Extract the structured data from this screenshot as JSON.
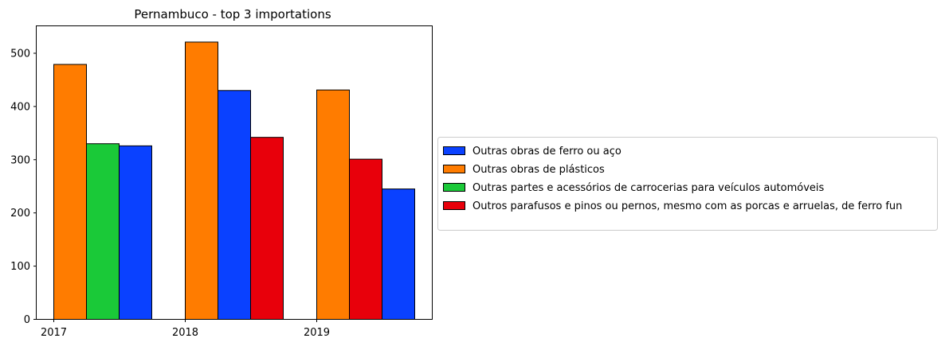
{
  "chart_data": {
    "type": "bar",
    "title": "Pernambuco - top 3 importations",
    "xlabel": "",
    "ylabel": "",
    "ylim": [
      0,
      550
    ],
    "yticks": [
      0,
      100,
      200,
      300,
      400,
      500
    ],
    "xticks": [
      "2017",
      "2018",
      "2019"
    ],
    "legend_position": "center-left, outside right of plot",
    "series": [
      {
        "name": "Outras obras de ferro ou aço",
        "color": "#0a41ff"
      },
      {
        "name": "Outras obras de plásticos",
        "color": "#ff7c00"
      },
      {
        "name": "Outras partes e acessórios de carrocerias para veículos automóveis",
        "color": "#1ac938"
      },
      {
        "name": "Outros parafusos e pinos ou pernos, mesmo com as porcas e arruelas, de ferro fun",
        "color": "#e8000b"
      }
    ],
    "groups": [
      {
        "year": "2017",
        "bars": [
          {
            "series": "Outras obras de plásticos",
            "value": 479
          },
          {
            "series": "Outras partes e acessórios de carrocerias para veículos automóveis",
            "value": 330
          },
          {
            "series": "Outras obras de ferro ou aço",
            "value": 326
          }
        ]
      },
      {
        "year": "2018",
        "bars": [
          {
            "series": "Outras obras de plásticos",
            "value": 521
          },
          {
            "series": "Outras obras de ferro ou aço",
            "value": 430
          },
          {
            "series": "Outros parafusos e pinos ou pernos, mesmo com as porcas e arruelas, de ferro fun",
            "value": 342
          }
        ]
      },
      {
        "year": "2019",
        "bars": [
          {
            "series": "Outras obras de plásticos",
            "value": 431
          },
          {
            "series": "Outros parafusos e pinos ou pernos, mesmo com as porcas e arruelas, de ferro fun",
            "value": 301
          },
          {
            "series": "Outras obras de ferro ou aço",
            "value": 245
          }
        ]
      }
    ]
  }
}
